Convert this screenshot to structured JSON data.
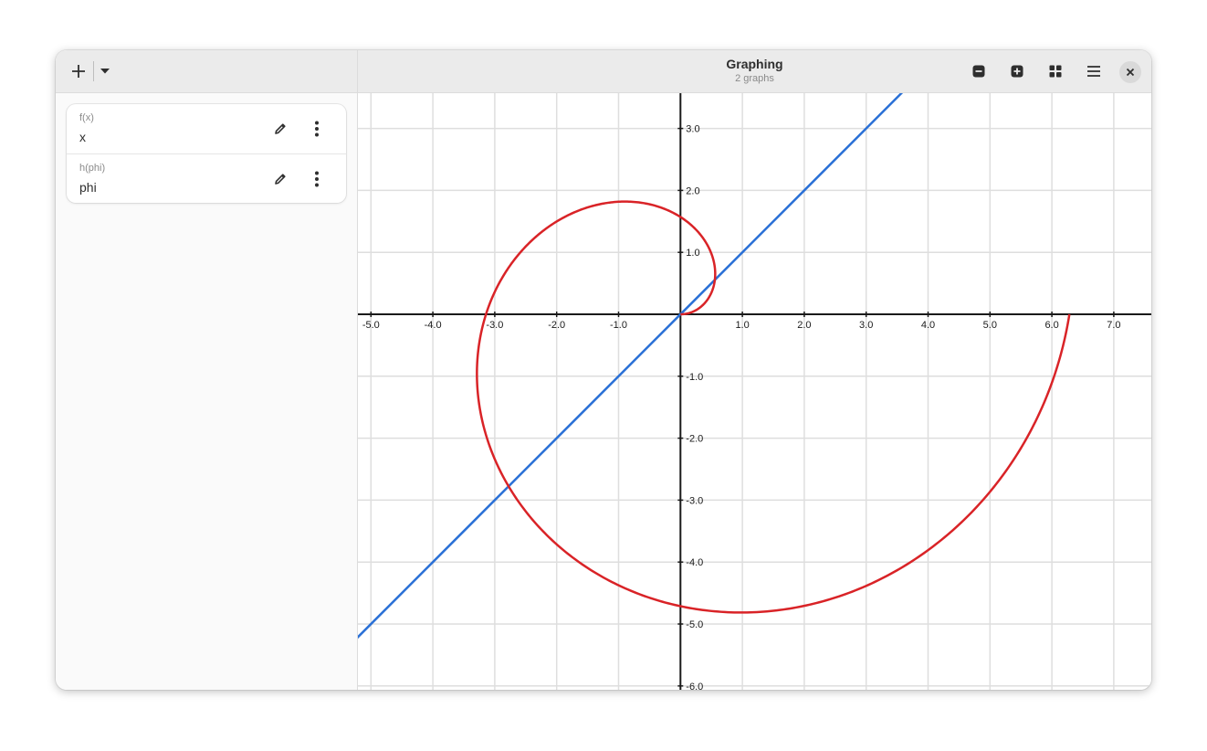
{
  "window": {
    "title": "Graphing",
    "subtitle": "2 graphs"
  },
  "sidebar": {
    "icons": {
      "add": "plus-icon",
      "dropdown": "chevron-down-icon"
    },
    "functions": [
      {
        "name": "f(x)",
        "expression": "x",
        "color": "#2a70d6"
      },
      {
        "name": "h(phi)",
        "expression": "phi",
        "color": "#d92327"
      }
    ]
  },
  "header": {
    "icons": [
      "zoom-out-icon",
      "zoom-in-icon",
      "view-grid-icon",
      "menu-icon",
      "close-icon"
    ]
  },
  "chart_data": {
    "type": "line",
    "x_range": [
      -5.2,
      7.6
    ],
    "y_range": [
      -6.1,
      3.6
    ],
    "grid": true,
    "x_ticks": [
      "-5.0",
      "-4.0",
      "-3.0",
      "-2.0",
      "-1.0",
      "1.0",
      "2.0",
      "3.0",
      "4.0",
      "5.0",
      "6.0",
      "7.0"
    ],
    "y_ticks": [
      "3.0",
      "2.0",
      "1.0",
      "-1.0",
      "-2.0",
      "-3.0",
      "-4.0",
      "-5.0",
      "-6.0"
    ],
    "series": [
      {
        "name": "f(x)",
        "expression": "x",
        "kind": "cartesian",
        "color": "#2a70d6"
      },
      {
        "name": "h(phi)",
        "expression": "phi",
        "kind": "polar",
        "phi_range": [
          0,
          6.2832
        ],
        "color": "#d92327"
      }
    ]
  }
}
